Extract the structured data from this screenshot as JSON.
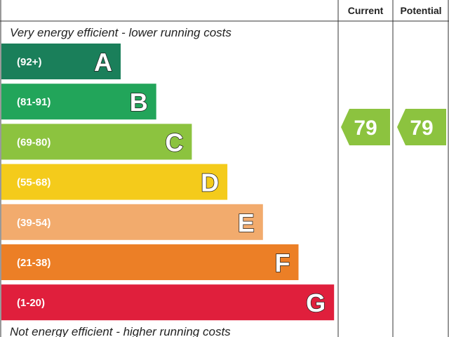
{
  "header": {
    "current": "Current",
    "potential": "Potential"
  },
  "top_note": "Very energy efficient - lower running costs",
  "bottom_note": "Not energy efficient - higher running costs",
  "bands": [
    {
      "range": "(92+)",
      "letter": "A",
      "color": "#1a7f5a"
    },
    {
      "range": "(81-91)",
      "letter": "B",
      "color": "#22a55a"
    },
    {
      "range": "(69-80)",
      "letter": "C",
      "color": "#8cc33f"
    },
    {
      "range": "(55-68)",
      "letter": "D",
      "color": "#f4cb1b"
    },
    {
      "range": "(39-54)",
      "letter": "E",
      "color": "#f2ab6d"
    },
    {
      "range": "(21-38)",
      "letter": "F",
      "color": "#ec7f26"
    },
    {
      "range": "(1-20)",
      "letter": "G",
      "color": "#e01f3c"
    }
  ],
  "current": {
    "value": 79,
    "color": "#8cc33f"
  },
  "potential": {
    "value": 79,
    "color": "#8cc33f"
  }
}
